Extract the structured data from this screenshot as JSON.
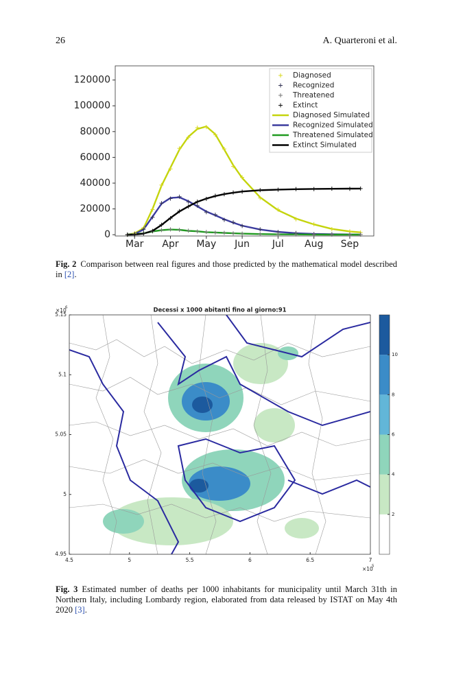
{
  "header": {
    "page": "26",
    "authors": "A. Quarteroni et al."
  },
  "figures": [
    {
      "chart_data": {
        "type": "line",
        "x": [
          -0.2,
          0,
          0.25,
          0.5,
          0.75,
          1,
          1.25,
          1.5,
          1.75,
          2,
          2.25,
          2.5,
          2.75,
          3,
          3.5,
          4,
          4.5,
          5,
          5.5,
          6,
          6.3
        ],
        "xlim": [
          -0.54,
          6.67
        ],
        "xticks": [
          {
            "value": 0,
            "label": "Mar"
          },
          {
            "value": 1,
            "label": "Apr"
          },
          {
            "value": 2,
            "label": "May"
          },
          {
            "value": 3,
            "label": "Jun"
          },
          {
            "value": 4,
            "label": "Jul"
          },
          {
            "value": 5,
            "label": "Aug"
          },
          {
            "value": 6,
            "label": "Sep"
          }
        ],
        "ylim": [
          -1000,
          131000
        ],
        "yticks": [
          0,
          20000,
          40000,
          60000,
          80000,
          100000,
          120000
        ],
        "legend": "upper right",
        "series": [
          {
            "name": "Diagnosed",
            "style": "markers",
            "color": "#d8d820",
            "values": [
              0,
              1100,
              5400,
              19500,
              38500,
              51000,
              67000,
              75500,
              83000,
              83500,
              77500,
              66500,
              53000,
              44500,
              28500,
              19500,
              12000,
              8200,
              4300,
              2600,
              1700
            ]
          },
          {
            "name": "Recognized",
            "style": "markers",
            "color": "#333355",
            "values": [
              0,
              600,
              4200,
              13500,
              24500,
              28000,
              29500,
              25500,
              22500,
              17500,
              15500,
              11500,
              9600,
              6800,
              4200,
              2100,
              1300,
              550,
              420,
              180,
              120
            ]
          },
          {
            "name": "Threatened",
            "style": "markers",
            "color": "#777777",
            "values": [
              0,
              250,
              1300,
              2600,
              3600,
              4100,
              3700,
              3100,
              2500,
              2100,
              1600,
              1450,
              1050,
              850,
              480,
              320,
              180,
              110,
              70,
              60,
              40
            ]
          },
          {
            "name": "Extinct",
            "style": "markers",
            "color": "#111111",
            "values": [
              0,
              120,
              900,
              2900,
              7700,
              12800,
              18300,
              21800,
              25700,
              27800,
              30200,
              31400,
              32700,
              33400,
              34600,
              34900,
              35400,
              35400,
              35700,
              35600,
              35800
            ]
          },
          {
            "name": "Diagnosed Simulated",
            "style": "line",
            "color": "#c4d40c",
            "values": [
              0,
              1000,
              5000,
              20000,
              38000,
              52000,
              66000,
              76000,
              82000,
              84000,
              78000,
              66000,
              54000,
              44000,
              29000,
              19000,
              12500,
              8000,
              4500,
              2500,
              1800
            ]
          },
          {
            "name": "Recognized Simulated",
            "style": "line",
            "color": "#3b3b9e",
            "values": [
              0,
              500,
              4000,
              14000,
              24000,
              28500,
              29000,
              26000,
              22000,
              18000,
              15000,
              12000,
              9300,
              7000,
              4000,
              2200,
              1200,
              600,
              400,
              200,
              100
            ]
          },
          {
            "name": "Threatened Simulated",
            "style": "line",
            "color": "#1f9a1f",
            "values": [
              0,
              200,
              1200,
              2500,
              3500,
              4000,
              3800,
              3000,
              2600,
              2000,
              1700,
              1400,
              1100,
              800,
              500,
              300,
              200,
              100,
              80,
              60,
              50
            ]
          },
          {
            "name": "Extinct Simulated",
            "style": "line",
            "color": "#000000",
            "values": [
              0,
              100,
              800,
              3000,
              7500,
              13000,
              18000,
              22000,
              25500,
              28000,
              30000,
              31500,
              32600,
              33500,
              34500,
              35000,
              35300,
              35500,
              35600,
              35700,
              35800
            ]
          }
        ]
      },
      "caption": {
        "label": "Fig. 2",
        "text": "Comparison between real figures and those predicted by the mathematical model described in",
        "cite": "[2]",
        "end": "."
      }
    },
    {
      "chart_data": {
        "type": "map",
        "title": "Decessi x 1000 abitanti fino al giorno:91",
        "xlim": [
          4.5,
          7
        ],
        "xticks": [
          4.5,
          5,
          5.5,
          6,
          6.5,
          7
        ],
        "ylim": [
          4.95,
          5.15
        ],
        "yticks": [
          4.95,
          5,
          5.05,
          5.1,
          5.15
        ],
        "x_scale": {
          "base": "×10",
          "exponent": "5"
        },
        "y_scale": {
          "base": "×10",
          "exponent": "6"
        },
        "clim": [
          0,
          12
        ],
        "cticks": [
          2,
          4,
          6,
          8,
          10
        ],
        "colors": [
          "#ffffff",
          "#c8e8c4",
          "#8fd5bb",
          "#62b6d8",
          "#3b8cc8",
          "#1c5a9e"
        ]
      },
      "caption": {
        "label": "Fig. 3",
        "text": "Estimated number of deaths per 1000 inhabitants for municipality until March 31th in Northern Italy, including Lombardy region, elaborated from data released by ISTAT on May 4th 2020",
        "cite": "[3]",
        "end": "."
      }
    }
  ]
}
